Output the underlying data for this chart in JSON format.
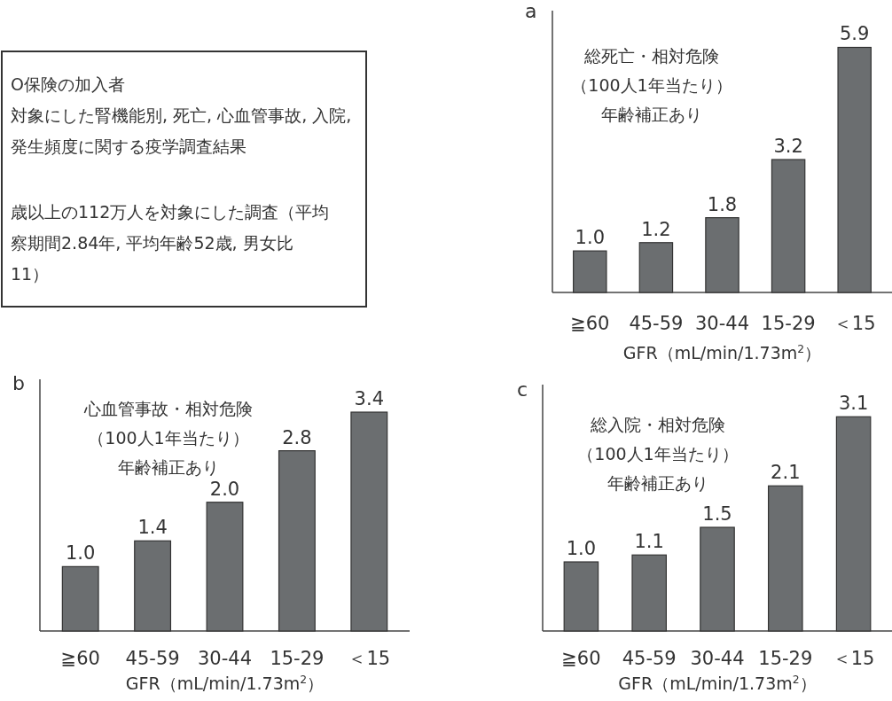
{
  "chart_data": [
    {
      "type": "other",
      "annotations": [
        "O保険の加入者",
        "対象にした腎機能別, 死亡, 心血管事故, 入院,",
        "発生頻度に関する疫学調査結果",
        "歳以上の112万人を対象にした調査（平均",
        "察期間2.84年, 平均年齢52歳, 男女比",
        "11）"
      ]
    },
    {
      "type": "bar",
      "title": "a",
      "xlabel": "GFR（mL/min/1.73m$^{2}$）",
      "categories": [
        "≧60",
        "45-59",
        "30-44",
        "15-29",
        "＜15"
      ],
      "values": [
        1.0,
        1.2,
        1.8,
        3.2,
        5.9
      ],
      "color": "#6b6e70",
      "value_labels": [
        "1.0",
        "1.2",
        "1.8",
        "3.2",
        "5.9"
      ],
      "annotations": [
        "総死亡・相対危険",
        "（100人1年当たり）",
        "年齢補正あり"
      ]
    },
    {
      "type": "bar",
      "title": "b",
      "xlabel": "GFR（mL/min/1.73m$^{2}$）",
      "categories": [
        "≧60",
        "45-59",
        "30-44",
        "15-29",
        "＜15"
      ],
      "values": [
        1.0,
        1.4,
        2.0,
        2.8,
        3.4
      ],
      "color": "#6b6e70",
      "value_labels": [
        "1.0",
        "1.4",
        "2.0",
        "2.8",
        "3.4"
      ],
      "annotations": [
        "心血管事故・相対危険",
        "（100人1年当たり）",
        "年齢補正あり"
      ]
    },
    {
      "type": "bar",
      "title": "c",
      "xlabel": "GFR（mL/min/1.73m$^{2}$）",
      "categories": [
        "≧60",
        "45-59",
        "30-44",
        "15-29",
        "＜15"
      ],
      "values": [
        1.0,
        1.1,
        1.5,
        2.1,
        3.1
      ],
      "color": "#6b6e70",
      "value_labels": [
        "1.0",
        "1.1",
        "1.5",
        "2.1",
        "3.1"
      ],
      "annotations": [
        "総入院・相対危険",
        "（100人1年当たり）",
        "年齢補正あり"
      ]
    }
  ]
}
